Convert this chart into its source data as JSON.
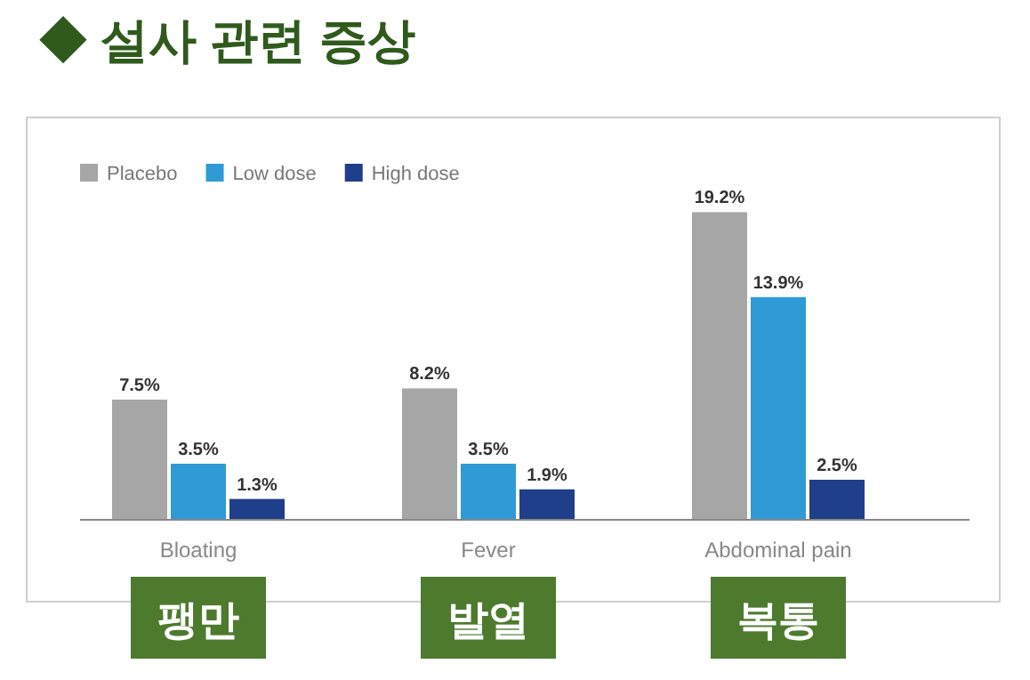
{
  "chart_data": {
    "type": "bar",
    "title": "◆ 설사 관련 증상",
    "categories": [
      "Bloating",
      "Fever",
      "Abdominal pain"
    ],
    "series": [
      {
        "name": "Placebo",
        "color": "#a6a6a6",
        "values": [
          7.5,
          8.2,
          19.2
        ],
        "value_labels": [
          "7.5%",
          "8.2%",
          "19.2%"
        ]
      },
      {
        "name": "Low dose",
        "color": "#2e9bd6",
        "values": [
          3.5,
          3.5,
          13.9
        ],
        "value_labels": [
          "3.5%",
          "3.5%",
          "13.9%"
        ]
      },
      {
        "name": "High dose",
        "color": "#1f3f8a",
        "values": [
          1.3,
          1.9,
          2.5
        ],
        "value_labels": [
          "1.3%",
          "1.9%",
          "2.5%"
        ]
      }
    ],
    "annotations": [
      "팽만",
      "발열",
      "복통"
    ],
    "legend": "top left"
  }
}
